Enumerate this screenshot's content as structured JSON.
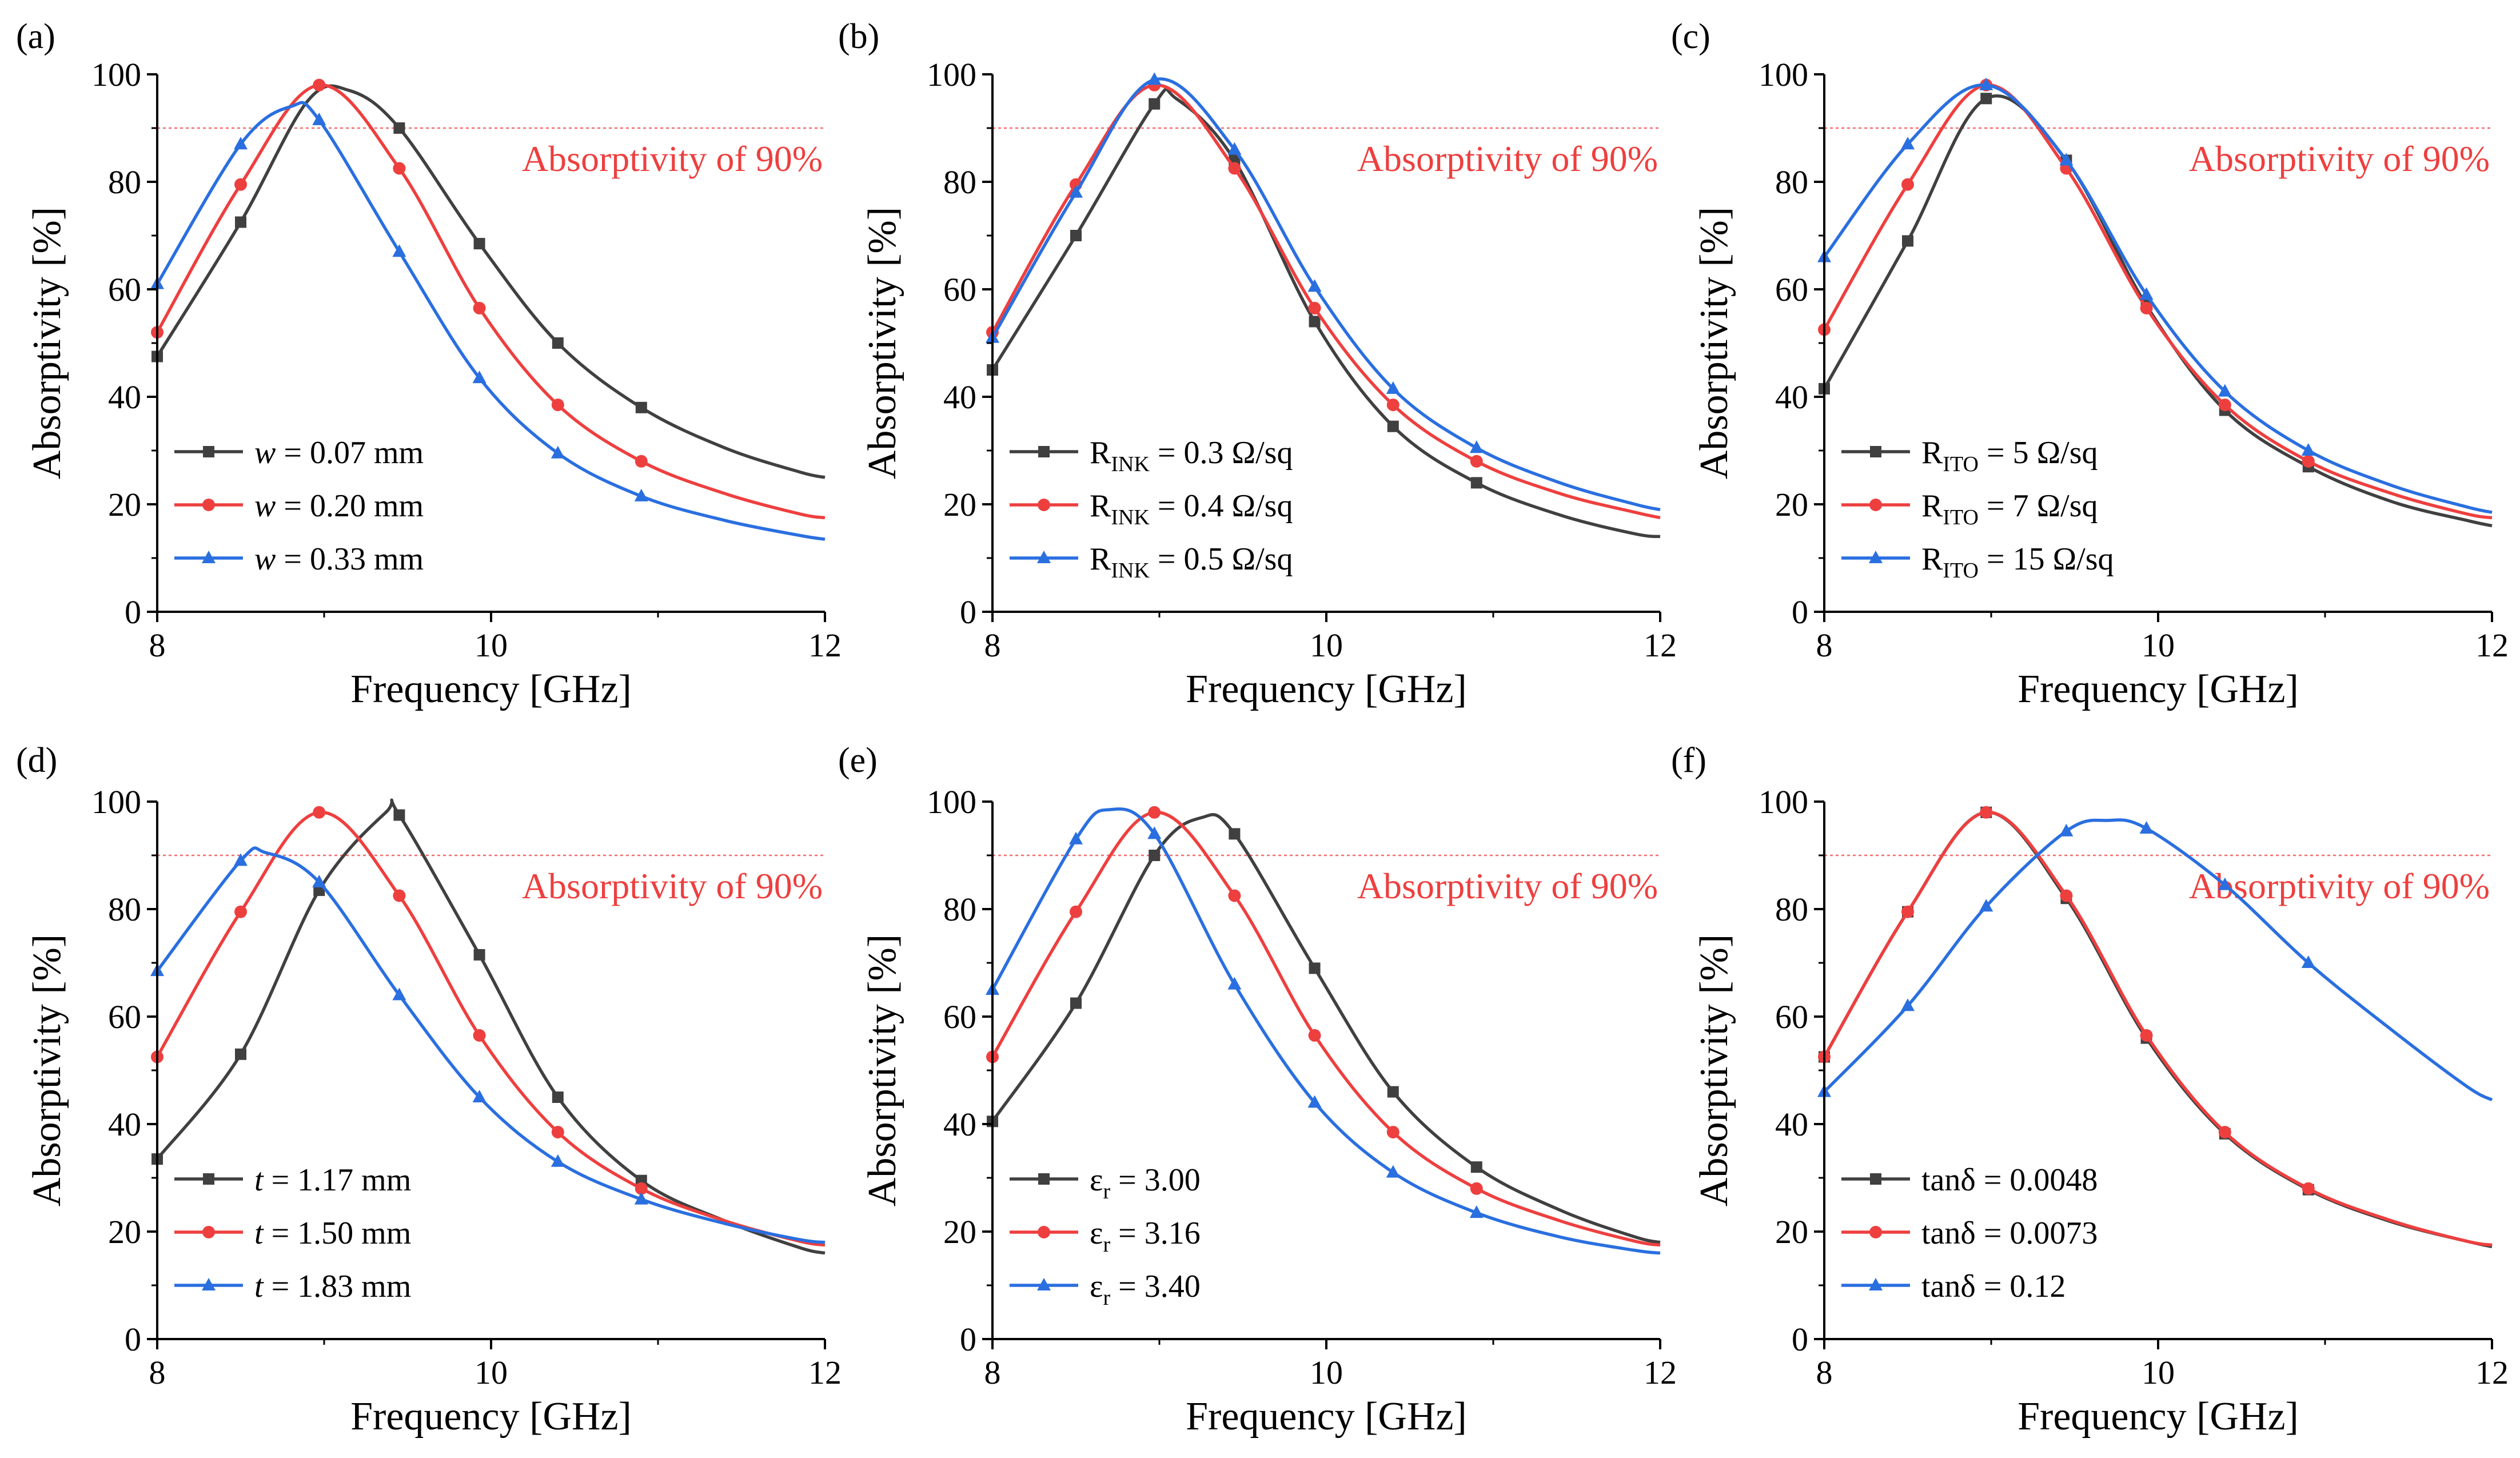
{
  "colors": {
    "black": "#404040",
    "red": "#ee3f3f",
    "blue": "#2a6fe0",
    "ref_line": "#f26d6d"
  },
  "chart_data": [
    {
      "panel_label": "(a)",
      "type": "line",
      "xlabel": "Frequency [GHz]",
      "ylabel": "Absorptivity [%]",
      "xlim": [
        8,
        12
      ],
      "ylim": [
        0,
        100
      ],
      "xticks": [
        "8",
        "10",
        "12"
      ],
      "yticks": [
        "0",
        "20",
        "40",
        "60",
        "80",
        "100"
      ],
      "reference": {
        "y": 90,
        "label": "Absorptivity of 90%"
      },
      "grid": false,
      "legend_position": "bottom-left",
      "series": [
        {
          "label_main": "w",
          "label_sub": "",
          "label_rest": " = 0.07 mm",
          "italic_main": true,
          "marker": "square",
          "color": "black",
          "x": [
            8.0,
            8.5,
            8.9,
            9.15,
            9.45,
            9.93,
            10.4,
            10.9,
            11.4,
            11.85,
            12.0
          ],
          "y": [
            47.5,
            72.5,
            95.0,
            97.0,
            90.0,
            68.5,
            50.0,
            38.0,
            30.5,
            26.0,
            25.0
          ]
        },
        {
          "label_main": "w",
          "label_sub": "",
          "label_rest": " = 0.20 mm",
          "italic_main": true,
          "marker": "circle",
          "color": "red",
          "x": [
            8.0,
            8.5,
            8.97,
            9.45,
            9.93,
            10.4,
            10.9,
            11.4,
            11.85,
            12.0
          ],
          "y": [
            52.0,
            79.5,
            98.0,
            82.5,
            56.5,
            38.5,
            28.0,
            22.0,
            18.2,
            17.5
          ]
        },
        {
          "label_main": "w",
          "label_sub": "",
          "label_rest": " = 0.33 mm",
          "italic_main": true,
          "marker": "triangle",
          "color": "blue",
          "x": [
            8.0,
            8.5,
            8.8,
            8.97,
            9.45,
            9.93,
            10.4,
            10.9,
            11.4,
            11.85,
            12.0
          ],
          "y": [
            61.0,
            87.0,
            94.0,
            91.5,
            67.0,
            43.5,
            29.5,
            21.5,
            17.0,
            14.2,
            13.5
          ]
        }
      ]
    },
    {
      "panel_label": "(b)",
      "type": "line",
      "xlabel": "Frequency [GHz]",
      "ylabel": "Absorptivity [%]",
      "xlim": [
        8,
        12
      ],
      "ylim": [
        0,
        100
      ],
      "xticks": [
        "8",
        "10",
        "12"
      ],
      "yticks": [
        "0",
        "20",
        "40",
        "60",
        "80",
        "100"
      ],
      "reference": {
        "y": 90,
        "label": "Absorptivity of 90%"
      },
      "grid": false,
      "legend_position": "bottom-left",
      "series": [
        {
          "label_main": "R",
          "label_sub": "INK",
          "label_rest": " = 0.3 Ω/sq",
          "italic_main": false,
          "marker": "square",
          "color": "black",
          "x": [
            8.0,
            8.5,
            8.97,
            9.1,
            9.45,
            9.93,
            10.4,
            10.9,
            11.4,
            11.85,
            12.0
          ],
          "y": [
            45.0,
            70.0,
            94.5,
            95.5,
            84.0,
            54.0,
            34.5,
            24.0,
            18.0,
            14.5,
            14.0
          ]
        },
        {
          "label_main": "R",
          "label_sub": "INK",
          "label_rest": " = 0.4 Ω/sq",
          "italic_main": false,
          "marker": "circle",
          "color": "red",
          "x": [
            8.0,
            8.5,
            8.97,
            9.45,
            9.93,
            10.4,
            10.9,
            11.4,
            11.85,
            12.0
          ],
          "y": [
            52.0,
            79.5,
            98.0,
            82.5,
            56.5,
            38.5,
            28.0,
            22.0,
            18.5,
            17.5
          ]
        },
        {
          "label_main": "R",
          "label_sub": "INK",
          "label_rest": " = 0.5 Ω/sq",
          "italic_main": false,
          "marker": "triangle",
          "color": "blue",
          "x": [
            8.0,
            8.5,
            8.97,
            9.45,
            9.93,
            10.4,
            10.9,
            11.4,
            11.85,
            12.0
          ],
          "y": [
            51.0,
            78.0,
            99.0,
            86.0,
            60.5,
            41.5,
            30.5,
            24.0,
            20.0,
            19.0
          ]
        }
      ]
    },
    {
      "panel_label": "(c)",
      "type": "line",
      "xlabel": "Frequency [GHz]",
      "ylabel": "Absorptivity [%]",
      "xlim": [
        8,
        12
      ],
      "ylim": [
        0,
        100
      ],
      "xticks": [
        "8",
        "10",
        "12"
      ],
      "yticks": [
        "0",
        "20",
        "40",
        "60",
        "80",
        "100"
      ],
      "reference": {
        "y": 90,
        "label": "Absorptivity of 90%"
      },
      "grid": false,
      "legend_position": "bottom-left",
      "series": [
        {
          "label_main": "R",
          "label_sub": "ITO",
          "label_rest": " = 5 Ω/sq",
          "italic_main": false,
          "marker": "square",
          "color": "black",
          "x": [
            8.0,
            8.5,
            8.97,
            9.45,
            9.93,
            10.4,
            10.9,
            11.4,
            11.85,
            12.0
          ],
          "y": [
            41.5,
            69.0,
            95.5,
            84.0,
            57.0,
            37.5,
            27.0,
            20.5,
            17.0,
            16.0
          ]
        },
        {
          "label_main": "R",
          "label_sub": "ITO",
          "label_rest": " = 7 Ω/sq",
          "italic_main": false,
          "marker": "circle",
          "color": "red",
          "x": [
            8.0,
            8.5,
            8.97,
            9.45,
            9.93,
            10.4,
            10.9,
            11.4,
            11.85,
            12.0
          ],
          "y": [
            52.5,
            79.5,
            98.0,
            82.5,
            56.5,
            38.5,
            28.0,
            22.0,
            18.2,
            17.5
          ]
        },
        {
          "label_main": "R",
          "label_sub": "ITO",
          "label_rest": " = 15 Ω/sq",
          "italic_main": false,
          "marker": "triangle",
          "color": "blue",
          "x": [
            8.0,
            8.5,
            8.97,
            9.45,
            9.93,
            10.4,
            10.9,
            11.4,
            11.85,
            12.0
          ],
          "y": [
            66.0,
            87.0,
            98.0,
            84.0,
            59.0,
            41.0,
            30.0,
            23.5,
            19.5,
            18.5
          ]
        }
      ]
    },
    {
      "panel_label": "(d)",
      "type": "line",
      "xlabel": "Frequency [GHz]",
      "ylabel": "Absorptivity [%]",
      "xlim": [
        8,
        12
      ],
      "ylim": [
        0,
        100
      ],
      "xticks": [
        "8",
        "10",
        "12"
      ],
      "yticks": [
        "0",
        "20",
        "40",
        "60",
        "80",
        "100"
      ],
      "reference": {
        "y": 90,
        "label": "Absorptivity of 90%"
      },
      "grid": false,
      "legend_position": "bottom-left",
      "series": [
        {
          "label_main": "t",
          "label_sub": "",
          "label_rest": " = 1.17 mm",
          "italic_main": true,
          "marker": "square",
          "color": "black",
          "x": [
            8.0,
            8.5,
            8.97,
            9.37,
            9.45,
            9.93,
            10.4,
            10.9,
            11.4,
            11.85,
            12.0
          ],
          "y": [
            33.5,
            53.0,
            83.5,
            98.0,
            97.5,
            71.5,
            45.0,
            29.5,
            22.0,
            17.0,
            16.0
          ]
        },
        {
          "label_main": "t",
          "label_sub": "",
          "label_rest": " = 1.50 mm",
          "italic_main": true,
          "marker": "circle",
          "color": "red",
          "x": [
            8.0,
            8.5,
            8.97,
            9.45,
            9.93,
            10.4,
            10.9,
            11.4,
            11.85,
            12.0
          ],
          "y": [
            52.5,
            79.5,
            98.0,
            82.5,
            56.5,
            38.5,
            28.0,
            22.0,
            18.2,
            17.5
          ]
        },
        {
          "label_main": "t",
          "label_sub": "",
          "label_rest": " = 1.83 mm",
          "italic_main": true,
          "marker": "triangle",
          "color": "blue",
          "x": [
            8.0,
            8.5,
            8.65,
            8.97,
            9.45,
            9.93,
            10.4,
            10.9,
            11.4,
            11.85,
            12.0
          ],
          "y": [
            68.5,
            89.0,
            90.5,
            85.0,
            64.0,
            45.0,
            33.0,
            26.0,
            21.5,
            18.5,
            18.0
          ]
        }
      ]
    },
    {
      "panel_label": "(e)",
      "type": "line",
      "xlabel": "Frequency [GHz]",
      "ylabel": "Absorptivity [%]",
      "xlim": [
        8,
        12
      ],
      "ylim": [
        0,
        100
      ],
      "xticks": [
        "8",
        "10",
        "12"
      ],
      "yticks": [
        "0",
        "20",
        "40",
        "60",
        "80",
        "100"
      ],
      "reference": {
        "y": 90,
        "label": "Absorptivity of 90%"
      },
      "grid": false,
      "legend_position": "bottom-left",
      "series": [
        {
          "label_main": "ε",
          "label_sub": "r",
          "label_rest": " = 3.00",
          "italic_main": false,
          "marker": "square",
          "color": "black",
          "x": [
            8.0,
            8.5,
            8.97,
            9.25,
            9.45,
            9.93,
            10.4,
            10.9,
            11.4,
            11.85,
            12.0
          ],
          "y": [
            40.5,
            62.5,
            90.0,
            97.0,
            94.0,
            69.0,
            46.0,
            32.0,
            24.0,
            19.0,
            18.0
          ]
        },
        {
          "label_main": "ε",
          "label_sub": "r",
          "label_rest": " = 3.16",
          "italic_main": false,
          "marker": "circle",
          "color": "red",
          "x": [
            8.0,
            8.5,
            8.97,
            9.45,
            9.93,
            10.4,
            10.9,
            11.4,
            11.85,
            12.0
          ],
          "y": [
            52.5,
            79.5,
            98.0,
            82.5,
            56.5,
            38.5,
            28.0,
            22.0,
            18.2,
            17.5
          ]
        },
        {
          "label_main": "ε",
          "label_sub": "r",
          "label_rest": " = 3.40",
          "italic_main": false,
          "marker": "triangle",
          "color": "blue",
          "x": [
            8.0,
            8.5,
            8.7,
            8.97,
            9.45,
            9.93,
            10.4,
            10.9,
            11.4,
            11.85,
            12.0
          ],
          "y": [
            65.0,
            93.0,
            98.5,
            94.0,
            66.0,
            44.0,
            31.0,
            23.5,
            19.0,
            16.5,
            16.0
          ]
        }
      ]
    },
    {
      "panel_label": "(f)",
      "type": "line",
      "xlabel": "Frequency [GHz]",
      "ylabel": "Absorptivity [%]",
      "xlim": [
        8,
        12
      ],
      "ylim": [
        0,
        100
      ],
      "xticks": [
        "8",
        "10",
        "12"
      ],
      "yticks": [
        "0",
        "20",
        "40",
        "60",
        "80",
        "100"
      ],
      "reference": {
        "y": 90,
        "label": "Absorptivity of 90%"
      },
      "grid": false,
      "legend_position": "bottom-left",
      "series": [
        {
          "label_main": "tanδ",
          "label_sub": "",
          "label_rest": " = 0.0048",
          "italic_main": false,
          "marker": "square",
          "color": "black",
          "x": [
            8.0,
            8.5,
            8.97,
            9.45,
            9.93,
            10.4,
            10.9,
            11.4,
            11.85,
            12.0
          ],
          "y": [
            52.5,
            79.5,
            98.0,
            82.0,
            56.0,
            38.2,
            27.8,
            21.8,
            18.2,
            17.2
          ]
        },
        {
          "label_main": "tanδ",
          "label_sub": "",
          "label_rest": " = 0.0073",
          "italic_main": false,
          "marker": "circle",
          "color": "red",
          "x": [
            8.0,
            8.5,
            8.97,
            9.45,
            9.93,
            10.4,
            10.9,
            11.4,
            11.85,
            12.0
          ],
          "y": [
            52.5,
            79.5,
            98.0,
            82.5,
            56.5,
            38.5,
            28.0,
            22.0,
            18.2,
            17.5
          ]
        },
        {
          "label_main": "tanδ",
          "label_sub": "",
          "label_rest": " = 0.12",
          "italic_main": false,
          "marker": "triangle",
          "color": "blue",
          "x": [
            8.0,
            8.5,
            8.97,
            9.45,
            9.7,
            9.93,
            10.4,
            10.9,
            11.4,
            11.85,
            12.0
          ],
          "y": [
            46.0,
            62.0,
            80.5,
            94.5,
            96.5,
            95.0,
            84.5,
            70.0,
            57.5,
            47.0,
            44.5
          ]
        }
      ]
    }
  ]
}
